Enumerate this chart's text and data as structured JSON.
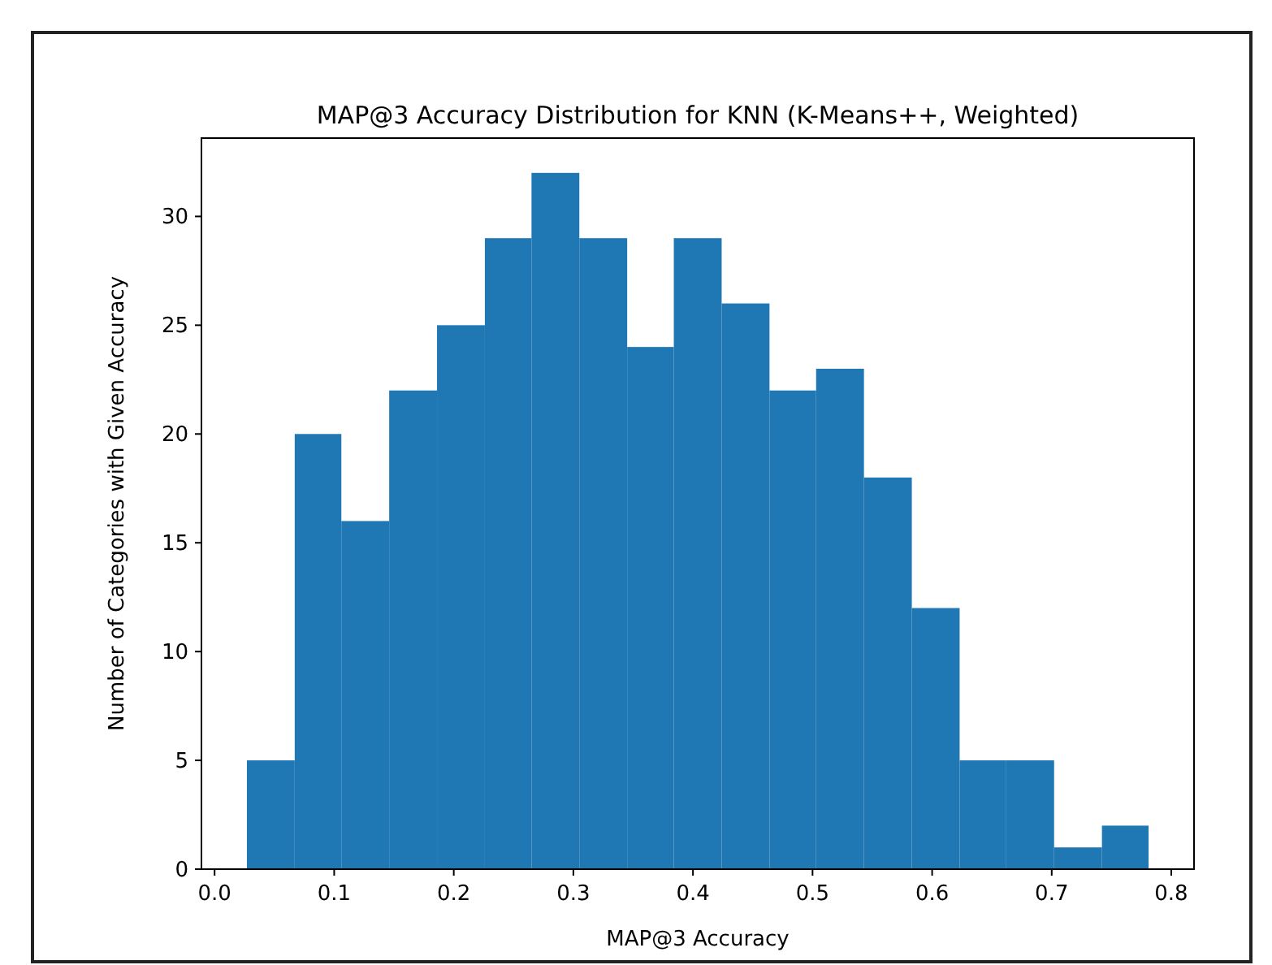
{
  "chart_data": {
    "type": "histogram",
    "title": "MAP@3 Accuracy Distribution for KNN (K-Means++, Weighted)",
    "xlabel": "MAP@3 Accuracy",
    "ylabel": "Number of Categories with Given Accuracy",
    "bins": [
      0.027,
      0.067,
      0.106,
      0.146,
      0.186,
      0.226,
      0.265,
      0.305,
      0.345,
      0.384,
      0.424,
      0.464,
      0.503,
      0.543,
      0.583,
      0.623,
      0.662,
      0.702,
      0.742,
      0.781
    ],
    "values": [
      5,
      20,
      16,
      22,
      25,
      29,
      32,
      29,
      24,
      29,
      26,
      22,
      23,
      18,
      12,
      5,
      5,
      1,
      2
    ],
    "color": "#1f77b4",
    "xlim": [
      -0.011,
      0.819
    ],
    "ylim": [
      0,
      33.6
    ],
    "xticks": [
      {
        "value": 0,
        "label": "0.0"
      },
      0.1,
      0.2,
      0.3,
      0.4,
      0.5,
      0.6,
      0.7,
      0.8
    ],
    "yticks": [
      0,
      5,
      10,
      15,
      20,
      25,
      30
    ]
  }
}
